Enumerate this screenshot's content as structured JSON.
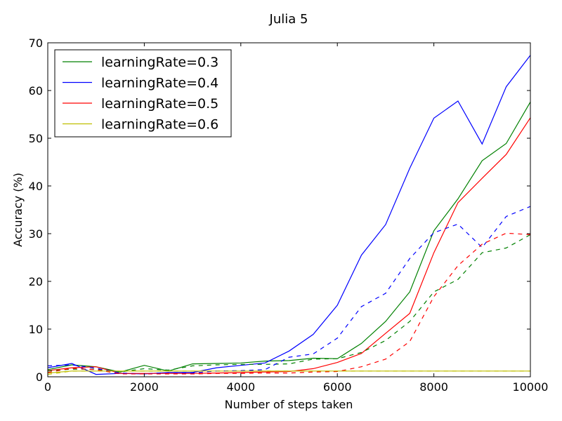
{
  "chart_data": {
    "type": "line",
    "title": "Julia 5",
    "xlabel": "Number of steps taken",
    "ylabel": "Accuracy (%)",
    "xlim": [
      0,
      10000
    ],
    "ylim": [
      0,
      70
    ],
    "xticks": [
      0,
      2000,
      4000,
      6000,
      8000,
      10000
    ],
    "yticks": [
      0,
      10,
      20,
      30,
      40,
      50,
      60,
      70
    ],
    "grid": false,
    "legend_position": "top-left",
    "x": [
      0,
      500,
      1000,
      1500,
      2000,
      2500,
      3000,
      3500,
      4000,
      4500,
      5000,
      5500,
      6000,
      6500,
      7000,
      7500,
      8000,
      8500,
      9000,
      9500,
      10000
    ],
    "series": [
      {
        "name": "learningRate=0.3",
        "color": "#008000",
        "style": "solid",
        "values": [
          1.5,
          2.5,
          2.1,
          1.0,
          2.4,
          1.2,
          2.7,
          2.8,
          2.9,
          3.3,
          3.4,
          3.9,
          3.8,
          7.0,
          11.6,
          17.8,
          30.6,
          37.3,
          45.3,
          48.9,
          57.6
        ]
      },
      {
        "name": "learningRate=0.4",
        "color": "#0000ff",
        "style": "solid",
        "values": [
          1.9,
          2.8,
          0.5,
          0.7,
          0.6,
          0.9,
          0.9,
          1.9,
          2.4,
          2.9,
          5.4,
          8.9,
          15.0,
          25.5,
          31.9,
          43.7,
          54.2,
          57.8,
          48.8,
          60.8,
          67.4
        ]
      },
      {
        "name": "learningRate=0.5",
        "color": "#ff0000",
        "style": "solid",
        "values": [
          1.3,
          1.9,
          2.1,
          0.7,
          0.7,
          0.7,
          0.7,
          0.8,
          0.9,
          1.0,
          1.1,
          1.7,
          3.0,
          4.9,
          9.1,
          13.3,
          26.0,
          36.5,
          41.6,
          46.6,
          54.3
        ]
      },
      {
        "name": "learningRate=0.6",
        "color": "#bfbf00",
        "style": "solid",
        "values": [
          0.8,
          1.2,
          1.2,
          1.2,
          1.2,
          1.2,
          1.2,
          1.2,
          1.2,
          1.2,
          1.2,
          1.2,
          1.2,
          1.2,
          1.2,
          1.2,
          1.2,
          1.2,
          1.2,
          1.2,
          1.2
        ]
      },
      {
        "color": "#008000",
        "style": "dashed",
        "values": [
          1.2,
          1.6,
          1.6,
          1.0,
          1.7,
          1.4,
          2.3,
          2.5,
          2.6,
          2.6,
          2.7,
          3.7,
          3.8,
          5.1,
          7.6,
          11.6,
          17.8,
          20.4,
          26.0,
          27.0,
          29.8
        ]
      },
      {
        "color": "#0000ff",
        "style": "dashed",
        "values": [
          2.3,
          2.5,
          1.8,
          0.8,
          0.6,
          0.9,
          0.8,
          1.2,
          1.3,
          1.5,
          4.1,
          4.8,
          8.1,
          14.7,
          17.5,
          24.8,
          30.2,
          32.0,
          27.1,
          33.6,
          35.7
        ]
      },
      {
        "color": "#ff0000",
        "style": "dashed",
        "values": [
          0.9,
          1.8,
          1.5,
          0.6,
          0.6,
          0.6,
          0.6,
          0.7,
          0.7,
          0.8,
          0.8,
          1.0,
          1.1,
          2.1,
          3.7,
          7.4,
          16.8,
          23.3,
          27.8,
          30.1,
          29.8
        ]
      },
      {
        "color": "#bfbf00",
        "style": "dashed",
        "values": [
          0.5,
          1.2,
          1.2,
          1.2,
          1.2,
          1.2,
          1.2,
          1.2,
          1.2,
          1.2,
          1.2,
          1.2,
          1.2,
          1.2,
          1.2,
          1.2,
          1.2,
          1.2,
          1.2,
          1.2,
          1.2
        ]
      }
    ]
  }
}
